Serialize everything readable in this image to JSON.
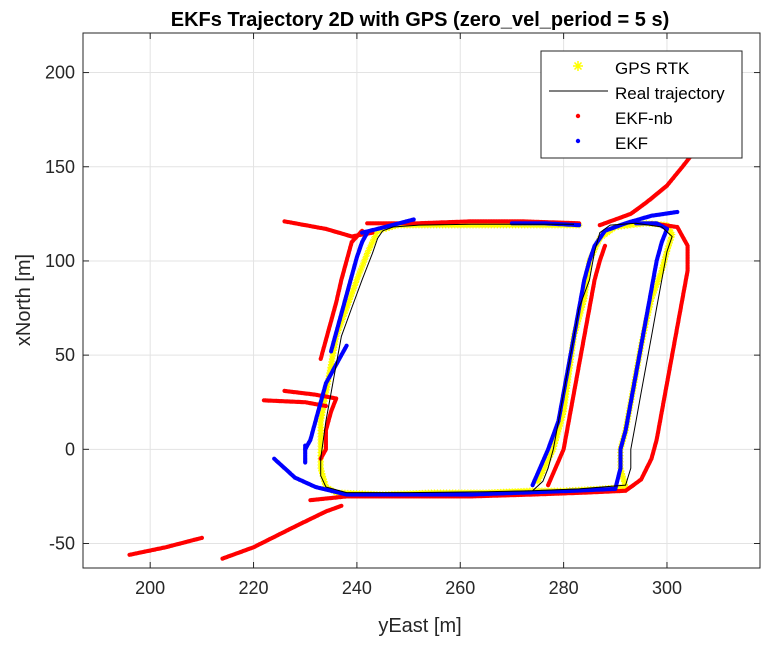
{
  "chart_data": {
    "type": "line",
    "title": "EKFs Trajectory 2D with GPS (zero_vel_period = 5 s)",
    "xlabel": "yEast [m]",
    "ylabel": "xNorth [m]",
    "xlim": [
      187,
      318
    ],
    "ylim": [
      -63,
      221
    ],
    "xticks": [
      200,
      220,
      240,
      260,
      280,
      300
    ],
    "yticks": [
      -50,
      0,
      50,
      100,
      150,
      200
    ],
    "grid": true,
    "legend_position": "top-right",
    "colors": {
      "gps": "#ffff00",
      "real": "#000000",
      "ekf_nb": "#ff0000",
      "ekf": "#0000ff"
    },
    "series": [
      {
        "name": "GPS RTK",
        "style": "markers-star",
        "segments": [
          [
            [
              244,
              116
            ],
            [
              248,
              119
            ],
            [
              256,
              119
            ],
            [
              266,
              119
            ],
            [
              276,
              119
            ],
            [
              283,
              119
            ]
          ],
          [
            [
              244,
              116
            ],
            [
              242,
              104
            ],
            [
              240,
              90
            ],
            [
              238,
              75
            ],
            [
              236,
              60
            ],
            [
              235,
              45
            ],
            [
              234,
              30
            ],
            [
              233,
              15
            ],
            [
              233,
              0
            ],
            [
              233,
              -10
            ],
            [
              234,
              -20
            ],
            [
              236,
              -23
            ]
          ],
          [
            [
              236,
              -23
            ],
            [
              245,
              -24
            ],
            [
              255,
              -23
            ],
            [
              265,
              -23
            ],
            [
              274,
              -22
            ],
            [
              280,
              -22
            ],
            [
              287,
              -21
            ],
            [
              292,
              -20
            ]
          ],
          [
            [
              275,
              -17
            ],
            [
              278,
              0
            ],
            [
              280,
              20
            ],
            [
              281,
              40
            ],
            [
              282,
              60
            ],
            [
              284,
              80
            ],
            [
              285,
              100
            ],
            [
              287,
              112
            ],
            [
              290,
              118
            ],
            [
              296,
              120
            ],
            [
              300,
              119
            ],
            [
              301,
              114
            ],
            [
              300,
              105
            ],
            [
              299,
              95
            ],
            [
              297,
              80
            ],
            [
              296,
              68
            ],
            [
              295,
              55
            ],
            [
              294,
              40
            ],
            [
              293,
              25
            ],
            [
              292,
              10
            ],
            [
              291,
              0
            ],
            [
              291,
              -10
            ],
            [
              292,
              -20
            ]
          ]
        ]
      },
      {
        "name": "Real trajectory",
        "style": "line",
        "segments": [
          [
            [
              245,
              116
            ],
            [
              244,
              112
            ],
            [
              243,
              104
            ],
            [
              241,
              90
            ],
            [
              239,
              75
            ],
            [
              237,
              60
            ],
            [
              236,
              45
            ],
            [
              235,
              30
            ],
            [
              234,
              15
            ],
            [
              233,
              -5
            ],
            [
              233,
              -14
            ],
            [
              234,
              -20
            ],
            [
              238,
              -23
            ],
            [
              250,
              -23
            ],
            [
              265,
              -22.5
            ],
            [
              274,
              -22
            ],
            [
              283,
              -21
            ],
            [
              292,
              -19
            ],
            [
              293,
              -10
            ],
            [
              293,
              0
            ],
            [
              294,
              15
            ],
            [
              295,
              30
            ],
            [
              296,
              45
            ],
            [
              297,
              60
            ],
            [
              298,
              75
            ],
            [
              299,
              90
            ],
            [
              300,
              105
            ],
            [
              301,
              113
            ],
            [
              299,
              118
            ],
            [
              294,
              120
            ],
            [
              289,
              119
            ],
            [
              287,
              115
            ],
            [
              286,
              105
            ],
            [
              285,
              90
            ],
            [
              283,
              75
            ],
            [
              282,
              60
            ],
            [
              281,
              45
            ],
            [
              280,
              30
            ],
            [
              279,
              15
            ],
            [
              278,
              0
            ],
            [
              277,
              -10
            ],
            [
              276,
              -17
            ],
            [
              274,
              -22
            ]
          ],
          [
            [
              245,
              116
            ],
            [
              247,
              118
            ],
            [
              252,
              119
            ],
            [
              262,
              119.5
            ],
            [
              272,
              119.5
            ],
            [
              282,
              119.5
            ]
          ]
        ]
      },
      {
        "name": "EKF-nb",
        "style": "markers-dot",
        "segments": [
          [
            [
              226,
              121
            ],
            [
              234,
              117
            ],
            [
              239,
              113
            ],
            [
              243,
              115
            ]
          ],
          [
            [
              241,
              116
            ],
            [
              239,
              110
            ],
            [
              238,
              100
            ],
            [
              237,
              90
            ],
            [
              236,
              78
            ],
            [
              235,
              68
            ],
            [
              234,
              58
            ],
            [
              233,
              48
            ]
          ],
          [
            [
              226,
              31
            ],
            [
              232,
              29
            ],
            [
              236,
              27
            ],
            [
              235,
              20
            ],
            [
              234,
              10
            ],
            [
              234,
              0
            ],
            [
              233,
              -5
            ]
          ],
          [
            [
              222,
              26
            ],
            [
              230,
              25
            ],
            [
              234,
              23
            ]
          ],
          [
            [
              242,
              120
            ],
            [
              252,
              120
            ],
            [
              262,
              121
            ],
            [
              272,
              121
            ],
            [
              283,
              120
            ]
          ],
          [
            [
              196,
              -56
            ],
            [
              203,
              -52
            ],
            [
              210,
              -47
            ]
          ],
          [
            [
              214,
              -58
            ],
            [
              220,
              -52
            ],
            [
              228,
              -41
            ],
            [
              234,
              -33
            ],
            [
              237,
              -30
            ]
          ],
          [
            [
              231,
              -27
            ],
            [
              238,
              -25
            ],
            [
              250,
              -25
            ],
            [
              262,
              -25
            ],
            [
              274,
              -24
            ],
            [
              284,
              -23
            ],
            [
              292,
              -22
            ],
            [
              295,
              -16
            ],
            [
              297,
              -5
            ],
            [
              298,
              5
            ],
            [
              299,
              20
            ],
            [
              300,
              35
            ],
            [
              301,
              50
            ],
            [
              302,
              65
            ],
            [
              303,
              80
            ],
            [
              304,
              95
            ],
            [
              304,
              108
            ],
            [
              302,
              118
            ],
            [
              297,
              120
            ]
          ],
          [
            [
              277,
              -19
            ],
            [
              280,
              0
            ],
            [
              281,
              15
            ],
            [
              282,
              30
            ],
            [
              283,
              45
            ],
            [
              284,
              60
            ],
            [
              285,
              75
            ],
            [
              286,
              90
            ],
            [
              287,
              100
            ],
            [
              288,
              108
            ]
          ],
          [
            [
              287,
              119
            ],
            [
              293,
              125
            ],
            [
              296,
              131
            ],
            [
              300,
              140
            ],
            [
              303,
              150
            ],
            [
              305,
              157
            ],
            [
              309,
              160
            ]
          ]
        ]
      },
      {
        "name": "EKF",
        "style": "markers-dot",
        "segments": [
          [
            [
              251,
              122
            ],
            [
              244,
              117
            ],
            [
              241,
              115
            ]
          ],
          [
            [
              242,
              115
            ],
            [
              241,
              110
            ],
            [
              240,
              102
            ],
            [
              239,
              92
            ],
            [
              238,
              82
            ],
            [
              237,
              72
            ],
            [
              236,
              62
            ],
            [
              235,
              52
            ]
          ],
          [
            [
              238,
              55
            ],
            [
              236,
              45
            ],
            [
              234,
              35
            ],
            [
              233,
              25
            ],
            [
              232,
              15
            ],
            [
              231,
              5
            ],
            [
              230,
              0
            ]
          ],
          [
            [
              230,
              2
            ],
            [
              230,
              -4
            ],
            [
              230,
              -7
            ]
          ],
          [
            [
              224,
              -5
            ],
            [
              228,
              -15
            ],
            [
              232,
              -20
            ],
            [
              238,
              -24
            ],
            [
              250,
              -24
            ],
            [
              262,
              -24
            ],
            [
              272,
              -23
            ],
            [
              282,
              -22
            ],
            [
              290,
              -21
            ],
            [
              291,
              -10
            ],
            [
              291,
              0
            ],
            [
              292,
              10
            ],
            [
              293,
              25
            ],
            [
              294,
              40
            ],
            [
              295,
              55
            ],
            [
              296,
              70
            ],
            [
              297,
              85
            ],
            [
              298,
              100
            ],
            [
              299,
              110
            ],
            [
              300,
              117
            ],
            [
              298,
              120
            ],
            [
              294,
              120
            ]
          ],
          [
            [
              274,
              -19
            ],
            [
              277,
              0
            ],
            [
              279,
              15
            ],
            [
              280,
              30
            ],
            [
              281,
              45
            ],
            [
              282,
              60
            ],
            [
              283,
              75
            ],
            [
              284,
              90
            ],
            [
              285,
              100
            ],
            [
              286,
              108
            ],
            [
              288,
              116
            ],
            [
              292,
              120
            ],
            [
              297,
              124
            ],
            [
              302,
              126
            ]
          ],
          [
            [
              270,
              120
            ],
            [
              276,
              120
            ],
            [
              283,
              119
            ]
          ]
        ]
      }
    ]
  }
}
